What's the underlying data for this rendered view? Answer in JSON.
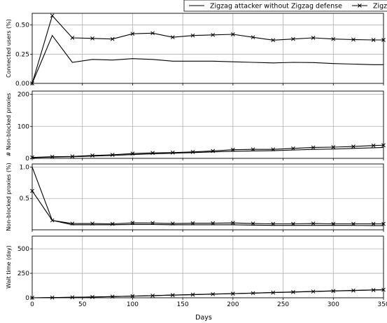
{
  "chart_data": {
    "type": "line",
    "xlabel": "Days",
    "x_ticks": [
      0,
      50,
      100,
      150,
      200,
      250,
      300,
      350
    ],
    "xlim": [
      0,
      350
    ],
    "grid": true,
    "legend_position": "top-center",
    "legend": [
      {
        "name": "Zigzag attacker without Zigzag defense",
        "marker": "none"
      },
      {
        "name": "Zigzag attacker with Zigzag defense",
        "marker": "x"
      }
    ],
    "x": [
      0,
      20,
      40,
      60,
      80,
      100,
      120,
      140,
      160,
      180,
      200,
      220,
      240,
      260,
      280,
      300,
      320,
      340,
      350
    ],
    "panels": [
      {
        "ylabel": "Connected users (%)",
        "ylim": [
          0,
          0.6
        ],
        "y_ticks": [
          0.0,
          0.25,
          0.5
        ],
        "y_tick_labels": [
          "0.00",
          "0.25",
          "0.50"
        ],
        "series": [
          {
            "name": "Zigzag attacker without Zigzag defense",
            "values": [
              0.0,
              0.41,
              0.18,
              0.205,
              0.2,
              0.212,
              0.205,
              0.19,
              0.19,
              0.19,
              0.185,
              0.18,
              0.175,
              0.18,
              0.178,
              0.17,
              0.165,
              0.16,
              0.16
            ]
          },
          {
            "name": "Zigzag attacker with Zigzag defense",
            "values": [
              0.0,
              0.58,
              0.39,
              0.385,
              0.38,
              0.425,
              0.43,
              0.395,
              0.41,
              0.415,
              0.42,
              0.395,
              0.37,
              0.38,
              0.39,
              0.38,
              0.375,
              0.372,
              0.372
            ]
          }
        ]
      },
      {
        "ylabel": "# Non-blocked proxies",
        "ylim": [
          0,
          210
        ],
        "y_ticks": [
          0,
          100,
          200
        ],
        "y_tick_labels": [
          "0",
          "100",
          "200"
        ],
        "series": [
          {
            "name": "Zigzag attacker without Zigzag defense",
            "values": [
              2,
              4,
              5,
              7,
              9,
              12,
              14,
              16,
              18,
              20,
              22,
              23,
              24,
              26,
              28,
              29,
              31,
              33,
              34
            ]
          },
          {
            "name": "Zigzag attacker with Zigzag defense",
            "values": [
              3,
              5,
              6,
              9,
              11,
              15,
              17,
              18,
              20,
              23,
              27,
              28,
              28,
              31,
              34,
              35,
              37,
              40,
              41
            ]
          }
        ]
      },
      {
        "ylabel": "Non-blocked proxies (%)",
        "ylim": [
          0,
          1.05
        ],
        "y_ticks": [
          0.5,
          1.0
        ],
        "y_tick_labels": [
          "0.5",
          "1.0"
        ],
        "series": [
          {
            "name": "Zigzag attacker without Zigzag defense",
            "values": [
              1.0,
              0.15,
              0.08,
              0.08,
              0.08,
              0.085,
              0.085,
              0.08,
              0.08,
              0.08,
              0.08,
              0.075,
              0.07,
              0.07,
              0.07,
              0.07,
              0.07,
              0.068,
              0.068
            ]
          },
          {
            "name": "Zigzag attacker with Zigzag defense",
            "values": [
              0.62,
              0.15,
              0.1,
              0.1,
              0.095,
              0.11,
              0.108,
              0.1,
              0.105,
              0.105,
              0.11,
              0.1,
              0.095,
              0.095,
              0.1,
              0.095,
              0.095,
              0.095,
              0.095
            ]
          }
        ]
      },
      {
        "ylabel": "Wait time (day)",
        "ylim": [
          0,
          630
        ],
        "y_ticks": [
          0,
          250,
          500
        ],
        "y_tick_labels": [
          "0",
          "250",
          "500"
        ],
        "series": [
          {
            "name": "Zigzag attacker without Zigzag defense",
            "values": [
              0,
              2,
              5,
              8,
              12,
              17,
              22,
              28,
              33,
              38,
              43,
              48,
              54,
              60,
              65,
              70,
              75,
              80,
              82
            ]
          },
          {
            "name": "Zigzag attacker with Zigzag defense",
            "values": [
              0,
              2,
              5,
              8,
              12,
              17,
              22,
              27,
              32,
              37,
              42,
              47,
              53,
              58,
              64,
              69,
              74,
              79,
              82
            ]
          }
        ]
      }
    ]
  }
}
